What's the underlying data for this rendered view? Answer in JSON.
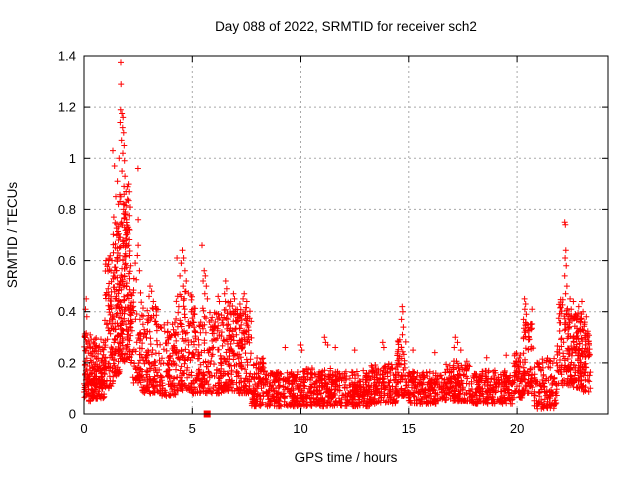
{
  "window": {
    "background_color": "#ffffff",
    "text_color": "#000000"
  },
  "chart_data": {
    "type": "scatter",
    "title": "Day 088 of 2022, SRMTID for receiver sch2",
    "xlabel": "GPS time / hours",
    "ylabel": "SRMTID / TECUs",
    "xlim": [
      0,
      24.2
    ],
    "ylim": [
      0,
      1.4
    ],
    "x_tick_values": [
      0,
      5,
      10,
      15,
      20
    ],
    "x_tick_labels": [
      "0",
      "5",
      "10",
      "15",
      "20"
    ],
    "y_tick_values": [
      0,
      0.2,
      0.4,
      0.6,
      0.8,
      1.0,
      1.2,
      1.4
    ],
    "y_tick_labels": [
      "0",
      "0.2",
      "0.4",
      "0.6",
      "0.8",
      "1",
      "1.2",
      "1.4"
    ],
    "grid": {
      "show": true,
      "color": "#a8a8a8",
      "style": "dashed",
      "x_lines": [
        5,
        10,
        15,
        20
      ],
      "y_lines": [
        0.2,
        0.4,
        0.6,
        0.8,
        1.0,
        1.2
      ]
    },
    "border_color": "#000000",
    "marker": {
      "shape": "plus",
      "color": "#ff0000",
      "size": 7
    },
    "peak_point": {
      "x": 1.71,
      "y": 1.375
    },
    "special_points": [
      {
        "x": 5.69,
        "y": 0.0,
        "shape": "filled-square",
        "color": "#ff0000"
      }
    ],
    "outlier_points": [
      [
        1.71,
        1.375
      ],
      [
        1.72,
        1.29
      ],
      [
        1.7,
        1.19
      ],
      [
        1.76,
        1.175
      ],
      [
        1.81,
        1.16
      ],
      [
        1.68,
        1.14
      ],
      [
        1.79,
        1.12
      ],
      [
        1.84,
        1.1
      ],
      [
        1.74,
        1.07
      ],
      [
        1.86,
        1.05
      ],
      [
        1.34,
        1.03
      ],
      [
        1.8,
        1.02
      ],
      [
        1.63,
        1.0
      ],
      [
        1.88,
        0.99
      ],
      [
        1.42,
        0.97
      ],
      [
        2.49,
        0.96
      ],
      [
        1.76,
        0.95
      ],
      [
        1.9,
        0.93
      ],
      [
        1.55,
        0.91
      ],
      [
        1.85,
        0.89
      ],
      [
        1.95,
        0.87
      ],
      [
        1.48,
        0.85
      ],
      [
        2.02,
        0.84
      ],
      [
        1.6,
        0.82
      ],
      [
        1.84,
        0.8
      ],
      [
        1.92,
        0.78
      ],
      [
        1.38,
        0.77
      ],
      [
        2.5,
        0.76
      ],
      [
        1.74,
        0.75
      ],
      [
        1.88,
        0.73
      ],
      [
        1.99,
        0.71
      ],
      [
        1.52,
        0.7
      ],
      [
        1.81,
        0.68
      ],
      [
        2.06,
        0.66
      ],
      [
        1.45,
        0.65
      ],
      [
        2.1,
        0.62
      ],
      [
        1.3,
        0.6
      ],
      [
        2.15,
        0.58
      ],
      [
        1.25,
        0.56
      ],
      [
        0.1,
        0.45
      ],
      [
        0.07,
        0.41
      ],
      [
        0.13,
        0.38
      ],
      [
        2.5,
        0.66
      ],
      [
        2.46,
        0.62
      ],
      [
        2.36,
        0.59
      ],
      [
        2.56,
        0.56
      ],
      [
        2.3,
        0.53
      ],
      [
        3.05,
        0.5
      ],
      [
        3.12,
        0.48
      ],
      [
        3.0,
        0.46
      ],
      [
        3.2,
        0.44
      ],
      [
        3.3,
        0.42
      ],
      [
        4.55,
        0.64
      ],
      [
        4.6,
        0.61
      ],
      [
        4.5,
        0.59
      ],
      [
        4.66,
        0.56
      ],
      [
        4.44,
        0.54
      ],
      [
        4.72,
        0.52
      ],
      [
        4.58,
        0.5
      ],
      [
        4.3,
        0.61
      ],
      [
        5.45,
        0.66
      ],
      [
        5.55,
        0.56
      ],
      [
        5.6,
        0.54
      ],
      [
        5.5,
        0.52
      ],
      [
        5.65,
        0.5
      ],
      [
        5.58,
        0.47
      ],
      [
        5.7,
        0.45
      ],
      [
        6.2,
        0.46
      ],
      [
        6.26,
        0.44
      ],
      [
        6.55,
        0.52
      ],
      [
        6.6,
        0.49
      ],
      [
        6.5,
        0.47
      ],
      [
        6.9,
        0.47
      ],
      [
        6.95,
        0.45
      ],
      [
        7.4,
        0.47
      ],
      [
        7.35,
        0.45
      ],
      [
        7.52,
        0.44
      ],
      [
        7.2,
        0.43
      ],
      [
        9.3,
        0.26
      ],
      [
        10.0,
        0.27
      ],
      [
        10.05,
        0.25
      ],
      [
        11.1,
        0.3
      ],
      [
        11.15,
        0.28
      ],
      [
        11.25,
        0.27
      ],
      [
        11.6,
        0.26
      ],
      [
        12.5,
        0.25
      ],
      [
        13.8,
        0.28
      ],
      [
        13.85,
        0.26
      ],
      [
        14.7,
        0.42
      ],
      [
        14.73,
        0.4
      ],
      [
        14.67,
        0.37
      ],
      [
        14.75,
        0.34
      ],
      [
        14.71,
        0.31
      ],
      [
        15.2,
        0.25
      ],
      [
        16.2,
        0.24
      ],
      [
        17.15,
        0.3
      ],
      [
        17.25,
        0.28
      ],
      [
        17.1,
        0.26
      ],
      [
        17.4,
        0.25
      ],
      [
        18.6,
        0.22
      ],
      [
        19.5,
        0.23
      ],
      [
        20.35,
        0.45
      ],
      [
        20.4,
        0.43
      ],
      [
        20.36,
        0.41
      ],
      [
        20.43,
        0.39
      ],
      [
        20.3,
        0.37
      ],
      [
        20.47,
        0.35
      ],
      [
        20.38,
        0.32
      ],
      [
        20.55,
        0.3
      ],
      [
        20.7,
        0.41
      ],
      [
        22.2,
        0.75
      ],
      [
        22.23,
        0.74
      ],
      [
        22.25,
        0.64
      ],
      [
        22.22,
        0.61
      ],
      [
        22.27,
        0.58
      ],
      [
        22.2,
        0.54
      ],
      [
        22.3,
        0.5
      ],
      [
        22.24,
        0.47
      ],
      [
        22.45,
        0.45
      ],
      [
        22.6,
        0.44
      ],
      [
        22.85,
        0.42
      ],
      [
        23.0,
        0.44
      ],
      [
        23.05,
        0.4
      ],
      [
        23.2,
        0.38
      ],
      [
        22.5,
        0.41
      ],
      [
        22.7,
        0.39
      ]
    ],
    "bands_format": "[x_start_hours, x_end_hours, point_count, y_min_TECUs, y_max_TECUs, skew_toward_min]",
    "bands": [
      [
        0.0,
        0.35,
        70,
        0.05,
        0.32,
        1.4
      ],
      [
        0.35,
        0.95,
        130,
        0.06,
        0.3,
        1.6
      ],
      [
        0.95,
        1.35,
        90,
        0.1,
        0.62,
        1.5
      ],
      [
        1.35,
        1.65,
        95,
        0.15,
        0.75,
        1.4
      ],
      [
        1.65,
        2.15,
        160,
        0.2,
        0.9,
        1.2
      ],
      [
        2.15,
        2.65,
        70,
        0.12,
        0.55,
        1.5
      ],
      [
        2.65,
        3.45,
        120,
        0.08,
        0.42,
        1.5
      ],
      [
        3.45,
        4.25,
        110,
        0.07,
        0.36,
        1.5
      ],
      [
        4.25,
        5.0,
        110,
        0.09,
        0.48,
        1.5
      ],
      [
        5.0,
        5.8,
        115,
        0.08,
        0.42,
        1.5
      ],
      [
        5.8,
        6.45,
        95,
        0.08,
        0.4,
        1.5
      ],
      [
        6.45,
        7.05,
        110,
        0.09,
        0.44,
        1.4
      ],
      [
        7.05,
        7.75,
        130,
        0.08,
        0.42,
        1.4
      ],
      [
        7.75,
        8.35,
        90,
        0.03,
        0.22,
        1.4
      ],
      [
        8.35,
        10.25,
        230,
        0.03,
        0.17,
        1.3
      ],
      [
        10.25,
        11.65,
        185,
        0.03,
        0.18,
        1.3
      ],
      [
        11.65,
        13.25,
        200,
        0.03,
        0.17,
        1.3
      ],
      [
        13.25,
        14.45,
        150,
        0.04,
        0.2,
        1.3
      ],
      [
        14.45,
        14.95,
        65,
        0.07,
        0.3,
        1.5
      ],
      [
        14.95,
        16.45,
        175,
        0.04,
        0.17,
        1.3
      ],
      [
        16.45,
        17.85,
        165,
        0.05,
        0.21,
        1.3
      ],
      [
        17.85,
        19.85,
        225,
        0.04,
        0.17,
        1.3
      ],
      [
        19.85,
        20.25,
        60,
        0.06,
        0.24,
        1.4
      ],
      [
        20.25,
        20.75,
        75,
        0.08,
        0.36,
        1.4
      ],
      [
        20.75,
        21.85,
        125,
        0.02,
        0.22,
        1.3
      ],
      [
        21.85,
        22.35,
        70,
        0.1,
        0.45,
        1.2
      ],
      [
        22.35,
        23.05,
        145,
        0.1,
        0.4,
        1.2
      ],
      [
        23.05,
        23.4,
        55,
        0.08,
        0.36,
        1.3
      ]
    ]
  }
}
